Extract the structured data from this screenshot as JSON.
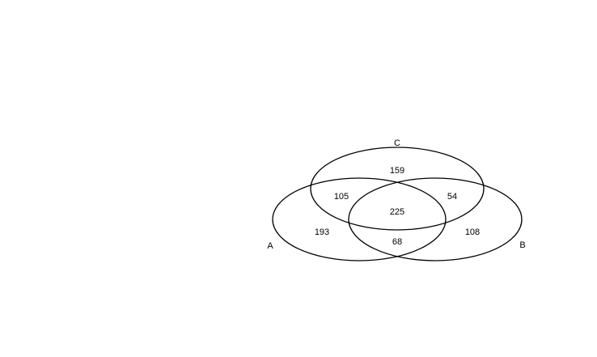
{
  "diagram": {
    "type": "venn-3",
    "sets": [
      {
        "id": "A",
        "label": "A"
      },
      {
        "id": "B",
        "label": "B"
      },
      {
        "id": "C",
        "label": "C"
      }
    ],
    "regions": {
      "A_only": "193",
      "B_only": "108",
      "C_only": "159",
      "A_and_C_only": "105",
      "B_and_C_only": "54",
      "A_and_B_only": "68",
      "A_and_B_and_C": "225"
    },
    "colors": {
      "stroke": "#000000",
      "background": "#ffffff"
    }
  }
}
